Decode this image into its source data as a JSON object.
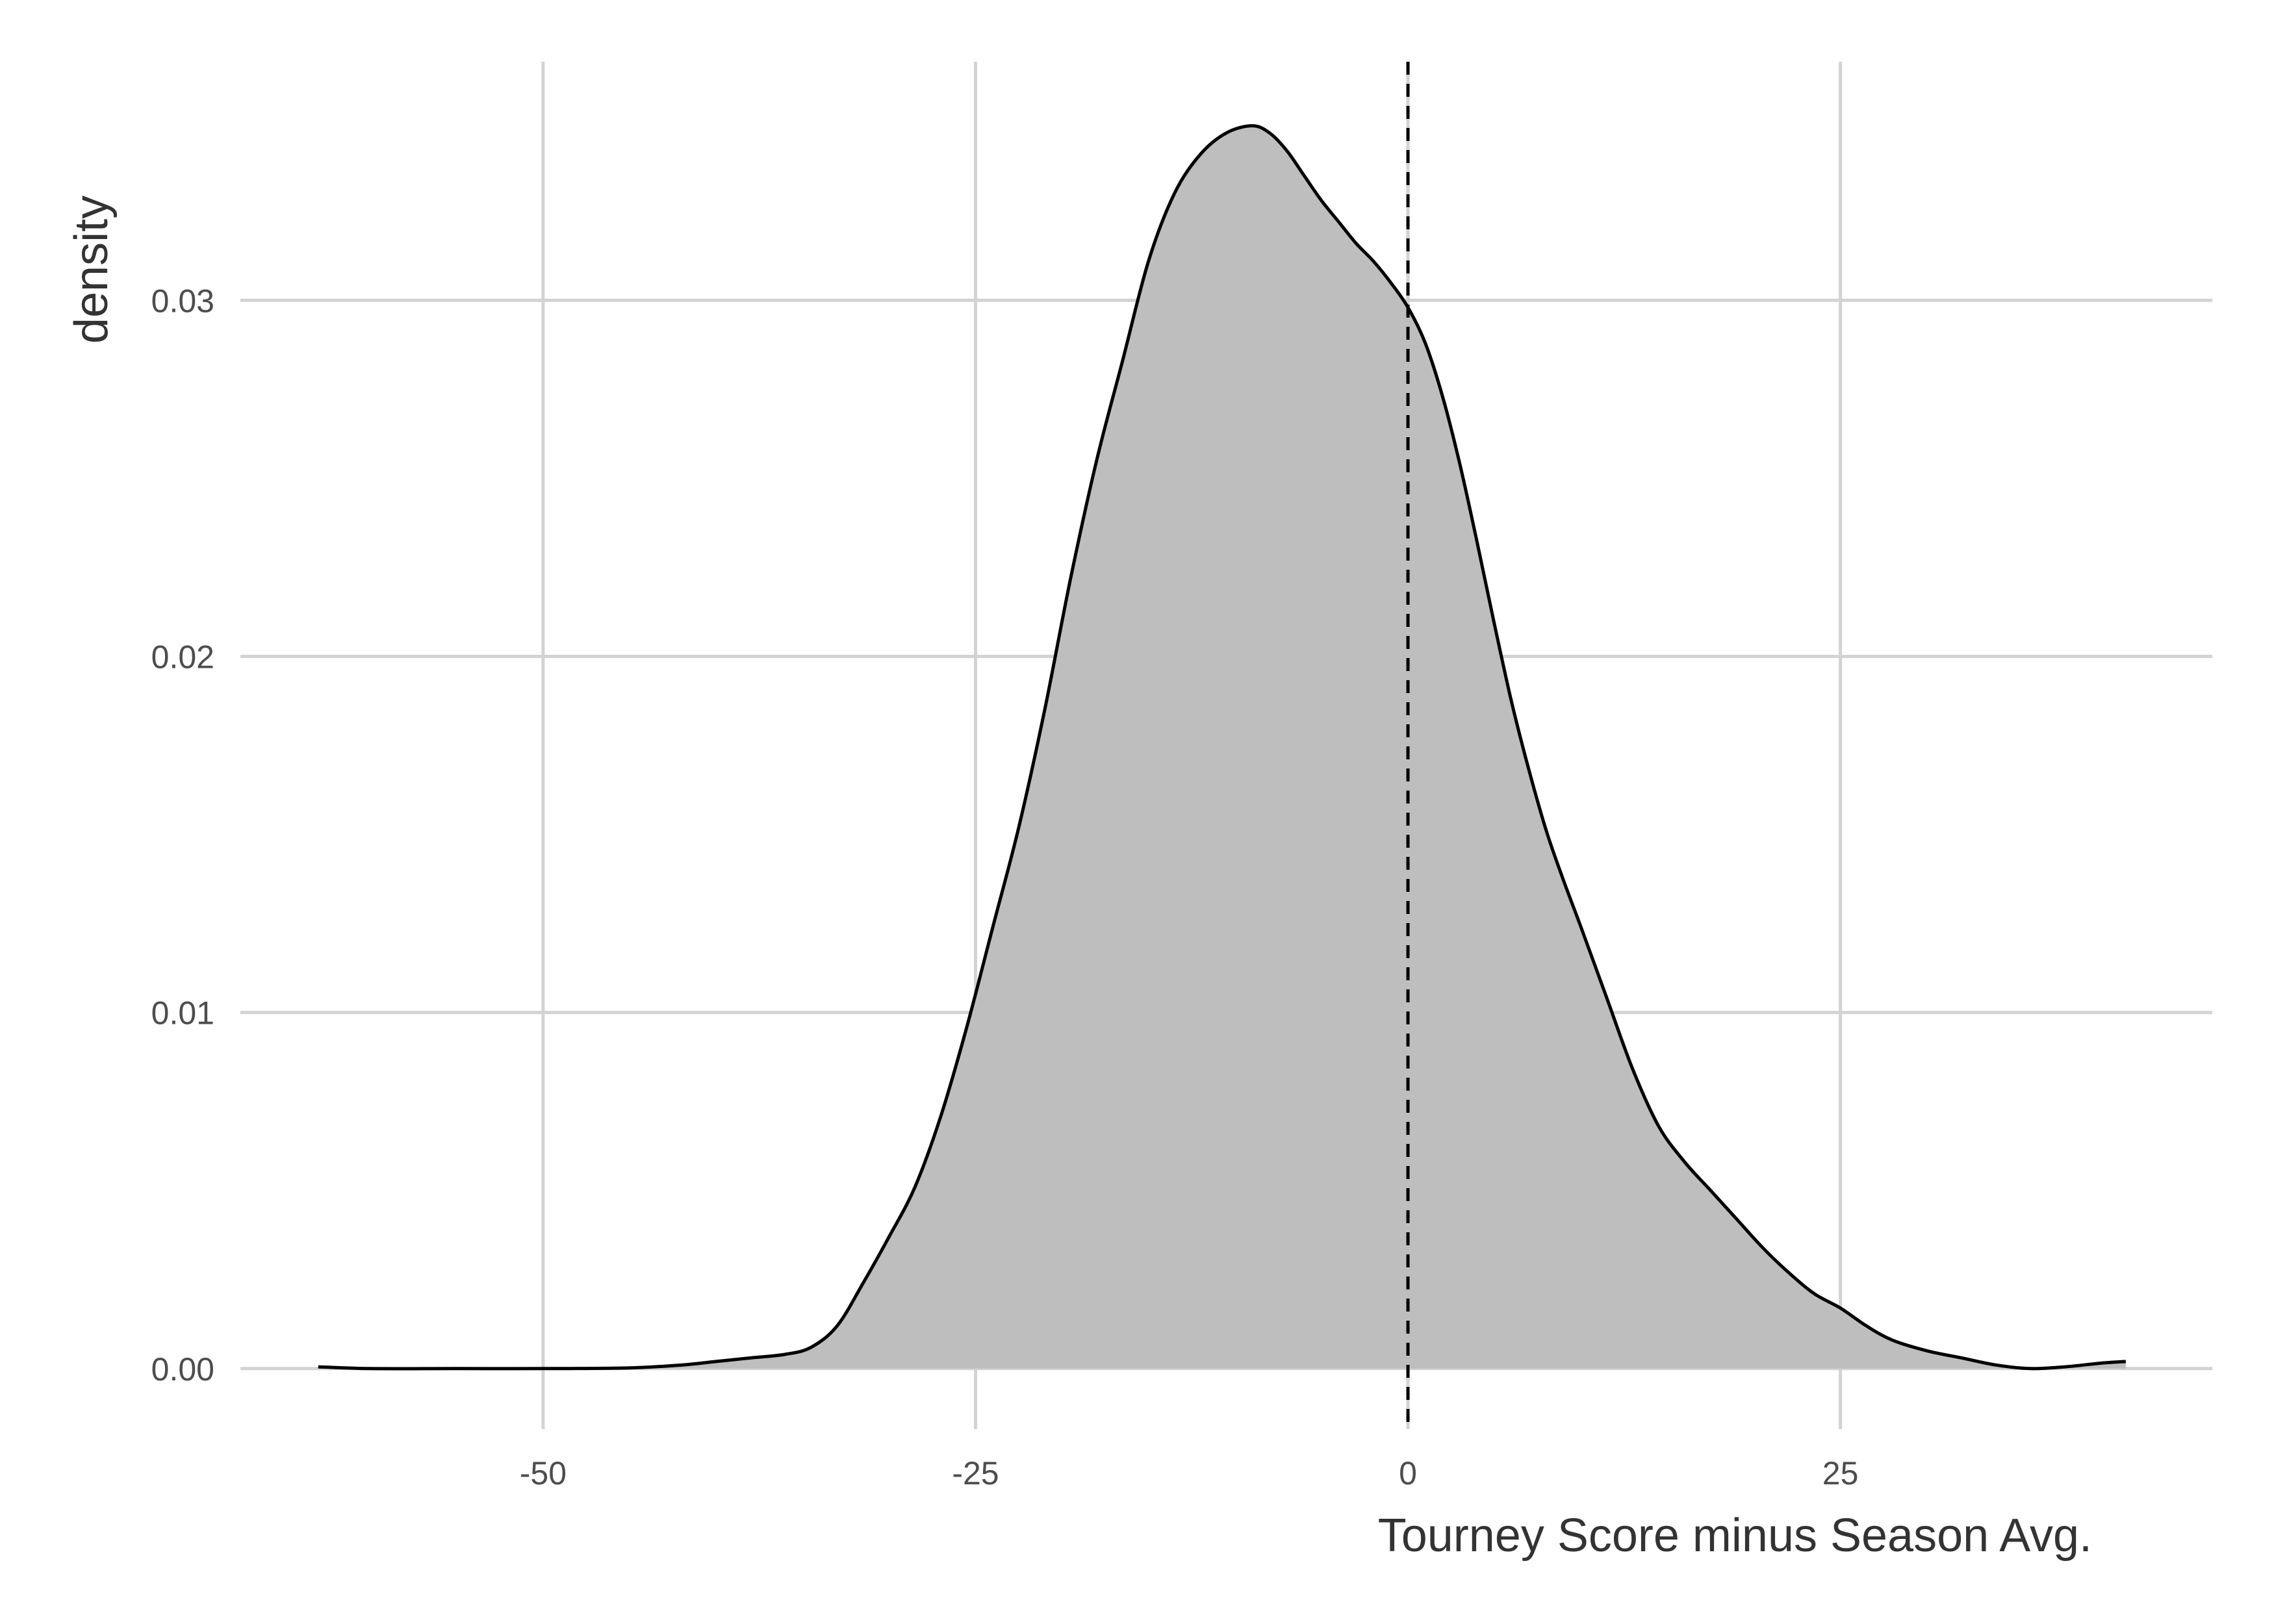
{
  "chart_data": {
    "type": "area",
    "title": "",
    "xlabel": "Tourney Score minus Season Avg.",
    "ylabel": "density",
    "xlim": [
      -67.5,
      46.5
    ],
    "ylim": [
      -0.0017,
      0.0367
    ],
    "x_ticks": [
      -50,
      -25,
      0,
      25
    ],
    "x_tick_labels": [
      "-50",
      "-25",
      "0",
      "25"
    ],
    "y_ticks": [
      0,
      0.01,
      0.02,
      0.03
    ],
    "y_tick_labels": [
      "0.00",
      "0.01",
      "0.02",
      "0.03"
    ],
    "grid": true,
    "reference_line": {
      "x": 0,
      "style": "dashed",
      "color": "#000000"
    },
    "fill_color": "#bebebe",
    "line_color": "#000000",
    "grid_color": "#d3d3d3",
    "series": [
      {
        "x": [
          -63,
          -60,
          -55,
          -50,
          -45,
          -42,
          -40,
          -38,
          -36,
          -34.5,
          -33,
          -31.5,
          -30,
          -28.5,
          -27,
          -25.5,
          -24,
          -22.5,
          -21,
          -19.5,
          -18,
          -16.5,
          -15,
          -13.5,
          -12,
          -10.5,
          -9,
          -8,
          -7,
          -6,
          -5,
          -4,
          -3,
          -2,
          -1,
          0,
          1,
          2,
          3,
          4,
          5,
          6,
          7,
          8,
          9,
          10,
          11.5,
          13,
          14.5,
          16,
          17.5,
          19,
          20.5,
          22,
          23.5,
          25,
          26.5,
          28,
          30,
          32,
          34,
          36,
          38,
          40,
          41.5
        ],
        "y": [
          5e-05,
          0.0,
          0.0,
          0.0,
          2e-05,
          0.0001,
          0.0002,
          0.0003,
          0.0004,
          0.0006,
          0.0012,
          0.0024,
          0.0037,
          0.0051,
          0.0071,
          0.0096,
          0.0124,
          0.0152,
          0.0185,
          0.0222,
          0.0255,
          0.0283,
          0.0311,
          0.033,
          0.0341,
          0.0347,
          0.0349,
          0.0347,
          0.0342,
          0.0335,
          0.0328,
          0.0322,
          0.0316,
          0.0311,
          0.0305,
          0.0298,
          0.0288,
          0.0273,
          0.0254,
          0.0232,
          0.0209,
          0.0187,
          0.0168,
          0.0151,
          0.0137,
          0.0124,
          0.0104,
          0.0084,
          0.0068,
          0.0058,
          0.005,
          0.0042,
          0.0034,
          0.0027,
          0.0021,
          0.0017,
          0.0012,
          0.0008,
          0.0005,
          0.0003,
          0.0001,
          0.0,
          5e-05,
          0.00015,
          0.0002
        ]
      }
    ]
  }
}
